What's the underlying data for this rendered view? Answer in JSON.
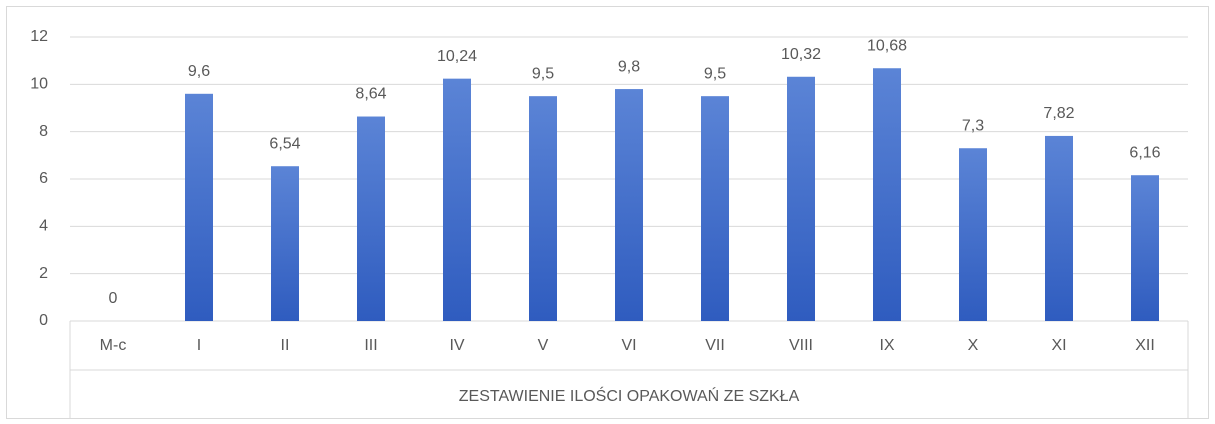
{
  "chart_data": {
    "type": "bar",
    "x_label": "ZESTAWIENIE ILOŚCI OPAKOWAŃ ZE SZKŁA",
    "categories": [
      "M-c",
      "I",
      "II",
      "III",
      "IV",
      "V",
      "VI",
      "VII",
      "VIII",
      "IX",
      "X",
      "XI",
      "XII"
    ],
    "values": [
      0,
      9.6,
      6.54,
      8.64,
      10.24,
      9.5,
      9.8,
      9.5,
      10.32,
      10.68,
      7.3,
      7.82,
      6.16
    ],
    "value_labels": [
      "0",
      "9,6",
      "6,54",
      "8,64",
      "10,24",
      "9,5",
      "9,8",
      "9,5",
      "10,32",
      "10,68",
      "7,3",
      "7,82",
      "6,16"
    ],
    "color": "#4472c4",
    "ylim": [
      0,
      12
    ],
    "yticks": [
      0,
      2,
      4,
      6,
      8,
      10,
      12
    ],
    "grid": true
  }
}
